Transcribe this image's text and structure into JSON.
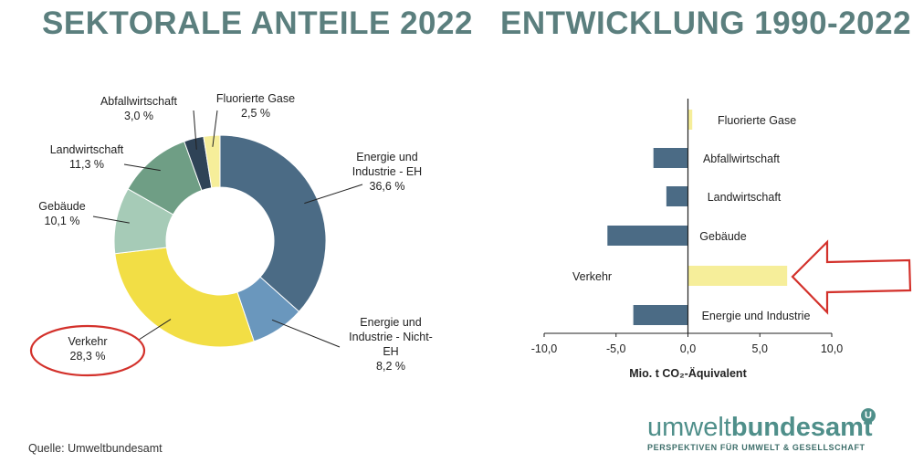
{
  "titles": {
    "left": "SEKTORALE ANTEILE 2022",
    "right": "ENTWICKLUNG 1990-2022"
  },
  "chart_data": [
    {
      "type": "pie",
      "variant": "donut",
      "title": "SEKTORALE ANTEILE 2022",
      "unit": "%",
      "slices": [
        {
          "name": "Energie und Industrie - EH",
          "label_lines": [
            "Energie und",
            "Industrie - EH",
            "36,6 %"
          ],
          "value": 36.6,
          "color": "#4b6b85"
        },
        {
          "name": "Energie und Industrie - Nicht-EH",
          "label_lines": [
            "Energie und",
            "Industrie - Nicht-",
            "EH",
            "8,2 %"
          ],
          "value": 8.2,
          "color": "#6a97bd"
        },
        {
          "name": "Verkehr",
          "label_lines": [
            "Verkehr",
            "28,3 %"
          ],
          "value": 28.3,
          "color": "#f2de45",
          "highlighted": true
        },
        {
          "name": "Gebäude",
          "label_lines": [
            "Gebäude",
            "10,1 %"
          ],
          "value": 10.1,
          "color": "#a6cbb7"
        },
        {
          "name": "Landwirtschaft",
          "label_lines": [
            "Landwirtschaft",
            "11,3 %"
          ],
          "value": 11.3,
          "color": "#6f9e85"
        },
        {
          "name": "Abfallwirtschaft",
          "label_lines": [
            "Abfallwirtschaft",
            "3,0 %"
          ],
          "value": 3.0,
          "color": "#2f4357"
        },
        {
          "name": "Fluorierte Gase",
          "label_lines": [
            "Fluorierte Gase",
            "2,5 %"
          ],
          "value": 2.5,
          "color": "#f6ee9a"
        }
      ]
    },
    {
      "type": "bar",
      "orientation": "horizontal",
      "title": "ENTWICKLUNG 1990-2022",
      "xlabel": "Mio. t CO₂-Äquivalent",
      "xlim": [
        -10,
        10
      ],
      "xticks": [
        -10,
        -5,
        0,
        5,
        10
      ],
      "xtick_labels": [
        "-10,0",
        "-5,0",
        "0,0",
        "5,0",
        "10,0"
      ],
      "categories": [
        "Fluorierte Gase",
        "Abfallwirtschaft",
        "Landwirtschaft",
        "Gebäude",
        "Verkehr",
        "Energie und Industrie"
      ],
      "values": [
        0.3,
        -2.4,
        -1.5,
        -5.6,
        6.9,
        -3.8
      ],
      "colors": [
        "#f6ee9a",
        "#4b6b85",
        "#4b6b85",
        "#4b6b85",
        "#f6ee9a",
        "#4b6b85"
      ],
      "highlighted": "Verkehr"
    }
  ],
  "source": "Quelle: Umweltbundesamt",
  "logo": {
    "word_light": "umwelt",
    "word_bold": "bundesamt",
    "badge": "U",
    "tagline": "PERSPEKTIVEN FÜR UMWELT & GESELLSCHAFT"
  }
}
